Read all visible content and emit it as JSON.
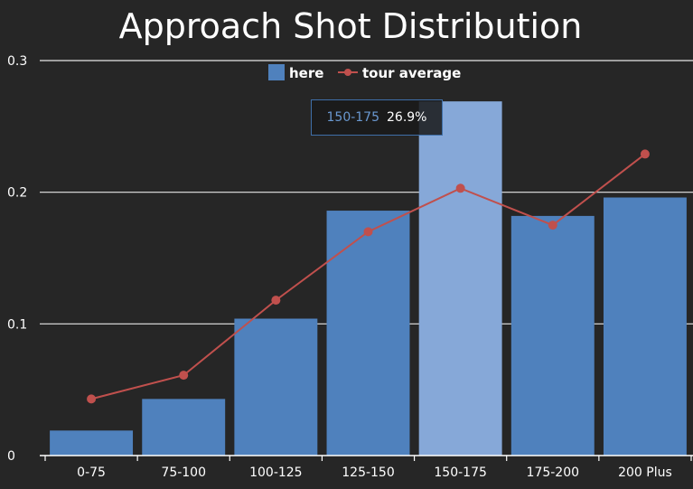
{
  "colors": {
    "background": "#262626",
    "bar": "#4f81bd",
    "bar_highlight": "#86a8d8",
    "line": "#c0504d",
    "grid": "#e6e6e6",
    "text": "#ffffff",
    "tooltip_key": "#6a98d0"
  },
  "chart_data": {
    "type": "bar",
    "title": "Approach Shot Distribution",
    "xlabel": "",
    "ylabel": "",
    "ylim": [
      0,
      0.3
    ],
    "y_ticks": [
      {
        "value": 0,
        "label": "0"
      },
      {
        "value": 0.1,
        "label": "0.1"
      },
      {
        "value": 0.2,
        "label": "0.2"
      },
      {
        "value": 0.3,
        "label": "0.3"
      }
    ],
    "categories": [
      "0-75",
      "75-100",
      "100-125",
      "125-150",
      "150-175",
      "175-200",
      "200 Plus"
    ],
    "series": [
      {
        "name": "here",
        "type": "bar",
        "values": [
          0.019,
          0.043,
          0.104,
          0.186,
          0.269,
          0.182,
          0.196
        ]
      },
      {
        "name": "tour average",
        "type": "line",
        "values": [
          0.043,
          0.061,
          0.118,
          0.17,
          0.203,
          0.175,
          0.229
        ]
      }
    ],
    "grid": true,
    "legend": "top-center",
    "highlighted_category": "150-175",
    "tooltip": {
      "category": "150-175",
      "value": "26.9%"
    }
  }
}
